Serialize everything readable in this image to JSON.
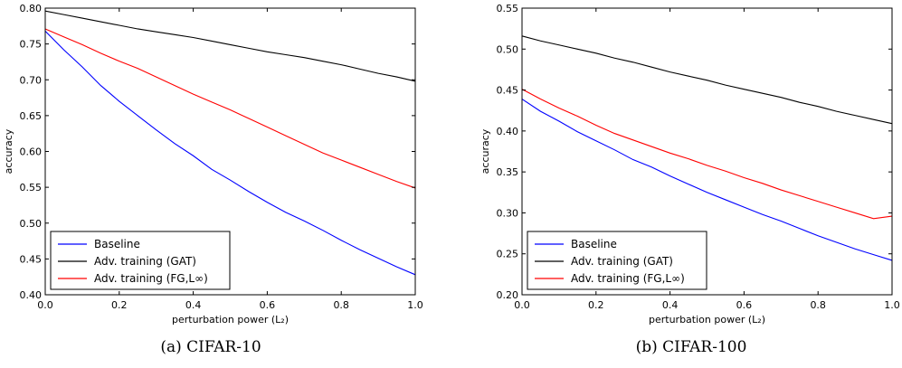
{
  "chart_data": [
    {
      "type": "line",
      "caption": "(a) CIFAR-10",
      "xlabel": "perturbation power (L₂)",
      "ylabel": "accuracy",
      "xlim": [
        0.0,
        1.0
      ],
      "ylim": [
        0.4,
        0.8
      ],
      "xticks": [
        "0.0",
        "0.2",
        "0.4",
        "0.6",
        "0.8",
        "1.0"
      ],
      "yticks": [
        "0.40",
        "0.45",
        "0.50",
        "0.55",
        "0.60",
        "0.65",
        "0.70",
        "0.75",
        "0.80"
      ],
      "grid": false,
      "legend_position": "lower-left",
      "x": [
        0.0,
        0.05,
        0.1,
        0.15,
        0.2,
        0.25,
        0.3,
        0.35,
        0.4,
        0.45,
        0.5,
        0.55,
        0.6,
        0.65,
        0.7,
        0.75,
        0.8,
        0.85,
        0.9,
        0.95,
        1.0
      ],
      "series": [
        {
          "name": "Baseline",
          "color": "#0000ff",
          "values": [
            0.768,
            0.742,
            0.718,
            0.692,
            0.67,
            0.65,
            0.63,
            0.611,
            0.594,
            0.575,
            0.56,
            0.544,
            0.529,
            0.515,
            0.503,
            0.49,
            0.476,
            0.463,
            0.451,
            0.439,
            0.428
          ]
        },
        {
          "name": "Adv. training (GAT)",
          "color": "#000000",
          "values": [
            0.796,
            0.791,
            0.786,
            0.781,
            0.776,
            0.771,
            0.767,
            0.763,
            0.759,
            0.754,
            0.749,
            0.744,
            0.739,
            0.735,
            0.731,
            0.726,
            0.721,
            0.715,
            0.709,
            0.704,
            0.698
          ]
        },
        {
          "name": "Adv. training (FG,L∞)",
          "color": "#ff0000",
          "values": [
            0.771,
            0.76,
            0.749,
            0.737,
            0.726,
            0.716,
            0.704,
            0.692,
            0.68,
            0.669,
            0.658,
            0.646,
            0.634,
            0.622,
            0.61,
            0.598,
            0.588,
            0.578,
            0.568,
            0.558,
            0.549
          ]
        }
      ]
    },
    {
      "type": "line",
      "caption": "(b) CIFAR-100",
      "xlabel": "perturbation power (L₂)",
      "ylabel": "accuracy",
      "xlim": [
        0.0,
        1.0
      ],
      "ylim": [
        0.2,
        0.55
      ],
      "xticks": [
        "0.0",
        "0.2",
        "0.4",
        "0.6",
        "0.8",
        "1.0"
      ],
      "yticks": [
        "0.20",
        "0.25",
        "0.30",
        "0.35",
        "0.40",
        "0.45",
        "0.50",
        "0.55"
      ],
      "grid": false,
      "legend_position": "lower-left",
      "x": [
        0.0,
        0.05,
        0.1,
        0.15,
        0.2,
        0.25,
        0.3,
        0.35,
        0.4,
        0.45,
        0.5,
        0.55,
        0.6,
        0.65,
        0.7,
        0.75,
        0.8,
        0.85,
        0.9,
        0.95,
        1.0
      ],
      "series": [
        {
          "name": "Baseline",
          "color": "#0000ff",
          "values": [
            0.439,
            0.424,
            0.412,
            0.399,
            0.388,
            0.377,
            0.365,
            0.356,
            0.345,
            0.335,
            0.325,
            0.316,
            0.307,
            0.298,
            0.29,
            0.281,
            0.272,
            0.264,
            0.256,
            0.249,
            0.242
          ]
        },
        {
          "name": "Adv. training (GAT)",
          "color": "#000000",
          "values": [
            0.516,
            0.51,
            0.505,
            0.5,
            0.495,
            0.489,
            0.484,
            0.478,
            0.472,
            0.467,
            0.462,
            0.456,
            0.451,
            0.446,
            0.441,
            0.435,
            0.43,
            0.424,
            0.419,
            0.414,
            0.409
          ]
        },
        {
          "name": "Adv. training (FG,L∞)",
          "color": "#ff0000",
          "values": [
            0.451,
            0.439,
            0.428,
            0.418,
            0.407,
            0.397,
            0.389,
            0.381,
            0.373,
            0.366,
            0.358,
            0.351,
            0.343,
            0.336,
            0.328,
            0.321,
            0.314,
            0.307,
            0.3,
            0.293,
            0.296
          ]
        }
      ]
    }
  ]
}
